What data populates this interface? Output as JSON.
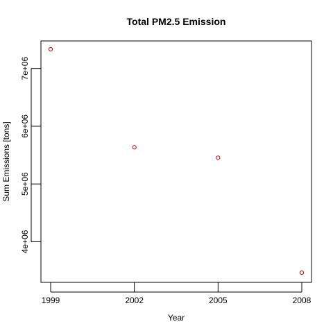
{
  "chart_data": {
    "type": "scatter",
    "title": "Total PM2.5 Emission",
    "xlabel": "Year",
    "ylabel": "Sum Emissions [tons]",
    "x": [
      1999,
      2002,
      2005,
      2008
    ],
    "y": [
      7332967,
      5635780,
      5454703,
      3464206
    ],
    "xlim": [
      1999,
      2008
    ],
    "ylim": [
      3464206,
      7332967
    ],
    "xticks": [
      1999,
      2002,
      2005,
      2008
    ],
    "xtick_labels": [
      "1999",
      "2002",
      "2005",
      "2008"
    ],
    "yticks": [
      4000000,
      5000000,
      6000000,
      7000000
    ],
    "ytick_labels": [
      "4e+06",
      "5e+06",
      "6e+06",
      "7e+06"
    ],
    "grid": false,
    "point_color": "#cc0000"
  }
}
